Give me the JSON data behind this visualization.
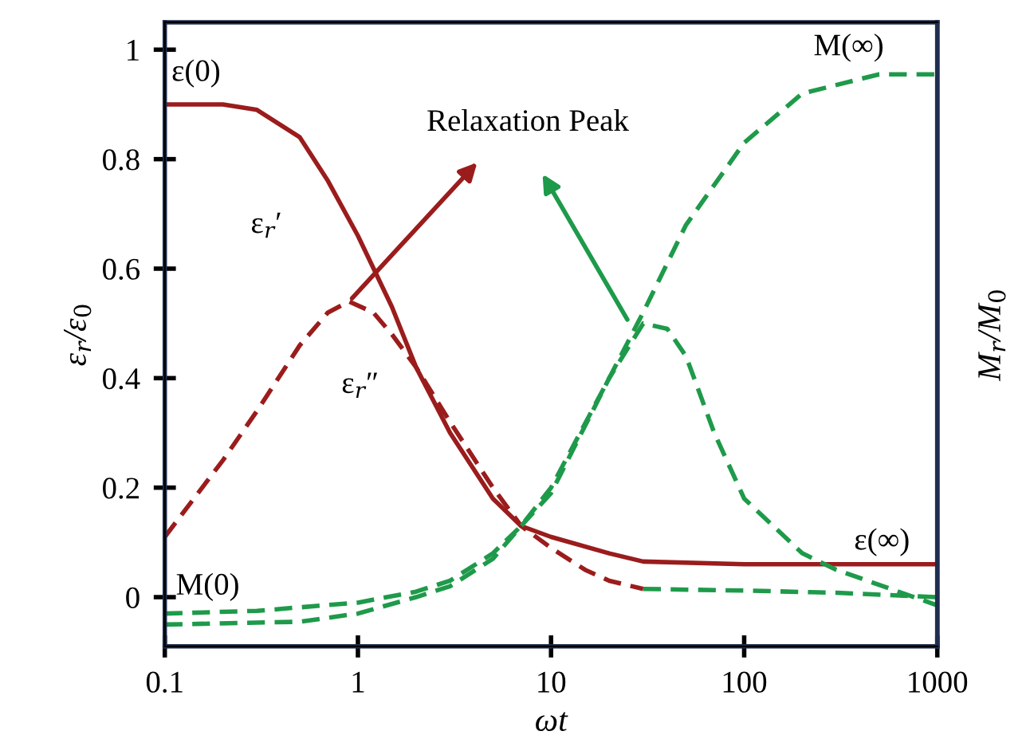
{
  "chart_data": {
    "type": "line",
    "xlabel": "ωt",
    "ylabel": "ε$_{r}$/ε$_{0}$",
    "y2label": "M$_{r}$/M$_{0}$",
    "log": "x",
    "xlim": [
      0.1,
      1000
    ],
    "xticks": [
      0.1,
      1,
      10,
      100,
      1000
    ],
    "ylim": [
      -0.09,
      1.05
    ],
    "yticks": [
      0,
      0.2,
      0.4,
      0.6,
      0.8,
      1
    ],
    "marker": "none",
    "series": [
      {
        "color": "#9b1c1c",
        "line_style": "solid",
        "x": [
          0.1,
          0.2,
          0.3,
          0.5,
          0.7,
          1,
          1.5,
          2,
          3,
          5,
          7,
          10,
          20,
          30,
          100,
          1000
        ],
        "values": [
          0.9,
          0.9,
          0.89,
          0.84,
          0.76,
          0.66,
          0.53,
          0.42,
          0.3,
          0.18,
          0.13,
          0.11,
          0.08,
          0.065,
          0.06,
          0.06
        ]
      },
      {
        "color": "#9b1c1c",
        "line_style": "dashed",
        "x": [
          0.1,
          0.2,
          0.3,
          0.5,
          0.7,
          0.9,
          1.2,
          1.5,
          2,
          3,
          5,
          7,
          10,
          15,
          20,
          30
        ],
        "values": [
          0.11,
          0.25,
          0.34,
          0.46,
          0.52,
          0.54,
          0.52,
          0.48,
          0.42,
          0.32,
          0.2,
          0.13,
          0.09,
          0.05,
          0.03,
          0.015
        ]
      },
      {
        "color": "#1e9a4a",
        "line_style": "dashed",
        "x": [
          30,
          100,
          300,
          1000
        ],
        "values": [
          0.015,
          0.012,
          0.008,
          0.0
        ]
      },
      {
        "color": "#1e9a4a",
        "line_style": "dashed",
        "x": [
          0.1,
          0.3,
          1,
          2,
          3,
          5,
          7,
          10,
          20,
          30,
          50,
          100,
          200,
          500,
          1000
        ],
        "values": [
          -0.03,
          -0.025,
          -0.01,
          0.01,
          0.03,
          0.08,
          0.13,
          0.2,
          0.4,
          0.52,
          0.68,
          0.83,
          0.92,
          0.955,
          0.955
        ]
      },
      {
        "color": "#1e9a4a",
        "line_style": "dashed",
        "x": [
          0.1,
          0.5,
          1,
          2,
          3,
          5,
          7,
          10,
          20,
          30,
          40,
          50,
          70,
          100,
          200,
          300,
          1000
        ],
        "values": [
          -0.05,
          -0.045,
          -0.03,
          0.0,
          0.02,
          0.07,
          0.13,
          0.19,
          0.4,
          0.5,
          0.49,
          0.44,
          0.3,
          0.18,
          0.08,
          0.05,
          -0.015
        ]
      }
    ],
    "annotations": [
      {
        "text": "ε(0)",
        "x": 0.1,
        "y": 0.9
      },
      {
        "text": "ε$_{r}$′",
        "x": 0.6,
        "y": 0.8
      },
      {
        "text": "ε$_{r}$″",
        "x": 0.9,
        "y": 0.54
      },
      {
        "text": "Relaxation Peak",
        "x": 0.9,
        "y": 0.54
      },
      {
        "text": "M(∞)",
        "x": 1000,
        "y": 0.955
      },
      {
        "text": "M(0)",
        "x": 0.1,
        "y": -0.03
      },
      {
        "text": "ε(∞)",
        "x": 1000,
        "y": 0.06
      }
    ]
  }
}
